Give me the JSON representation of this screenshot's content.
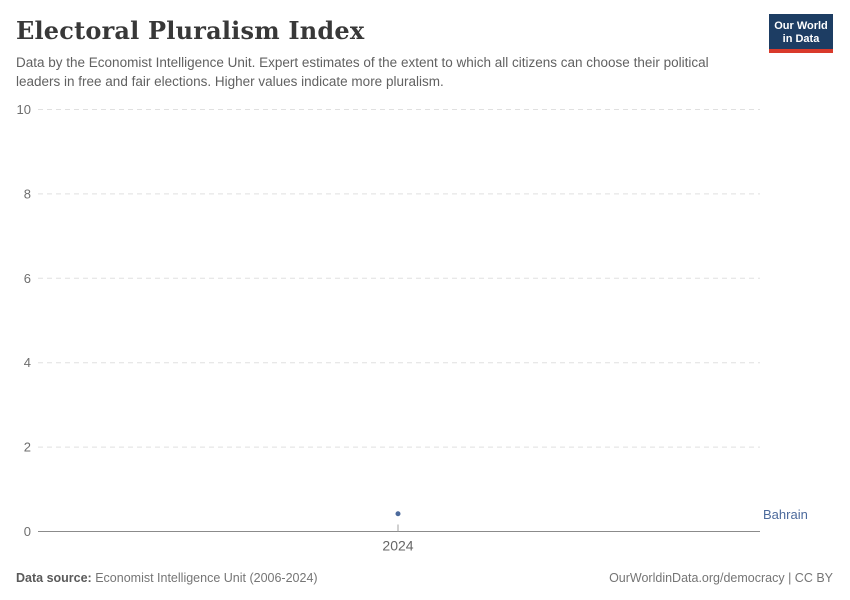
{
  "header": {
    "title": "Electoral Pluralism Index",
    "subtitle": "Data by the Economist Intelligence Unit. Expert estimates of the extent to which all citizens can choose their political leaders in free and fair elections. Higher values indicate more pluralism.",
    "logo": {
      "line1": "Our World",
      "line2": "in Data",
      "background": "#1d3d63",
      "accent": "#d93a2b",
      "text_color": "#ffffff"
    }
  },
  "chart_data": {
    "type": "scatter",
    "title": "Electoral Pluralism Index",
    "x": [
      2024
    ],
    "xtick_labels": [
      "2024"
    ],
    "series": [
      {
        "name": "Bahrain",
        "values": [
          0.42
        ]
      }
    ],
    "series_color": "#4c6a9c",
    "xlabel": "",
    "ylabel": "",
    "ylim": [
      0,
      10
    ],
    "yticks": [
      0,
      2,
      4,
      6,
      8,
      10
    ],
    "grid": "horizontal-dashed",
    "legend": "entity-label-right"
  },
  "axis_style": {
    "grid_color": "#e0e0e0",
    "zero_line_color": "#8b8b8b",
    "tick_color": "#a0a0a0",
    "tick_label_color": "#6e6e6e",
    "xtick_label_color": "#666666"
  },
  "footer": {
    "source_label": "Data source:",
    "source_text": " Economist Intelligence Unit (2006-2024)",
    "credit": "OurWorldinData.org/democracy | CC BY"
  }
}
